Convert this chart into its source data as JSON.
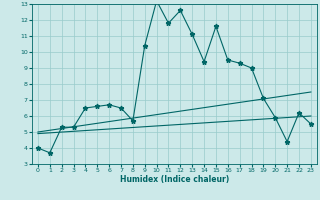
{
  "xlabel": "Humidex (Indice chaleur)",
  "xlim": [
    -0.5,
    23.5
  ],
  "ylim": [
    3,
    13
  ],
  "yticks": [
    3,
    4,
    5,
    6,
    7,
    8,
    9,
    10,
    11,
    12,
    13
  ],
  "xticks": [
    0,
    1,
    2,
    3,
    4,
    5,
    6,
    7,
    8,
    9,
    10,
    11,
    12,
    13,
    14,
    15,
    16,
    17,
    18,
    19,
    20,
    21,
    22,
    23
  ],
  "bg_color": "#cce9e9",
  "line_color": "#006666",
  "grid_color": "#99cccc",
  "series": [
    {
      "x": [
        0,
        1,
        2,
        3,
        4,
        5,
        6,
        7,
        8,
        9,
        10,
        11,
        12,
        13,
        14,
        15,
        16,
        17,
        18,
        19,
        20,
        21,
        22,
        23
      ],
      "y": [
        4.0,
        3.7,
        5.3,
        5.3,
        6.5,
        6.6,
        6.7,
        6.5,
        5.7,
        10.4,
        13.2,
        11.8,
        12.6,
        11.1,
        9.4,
        11.6,
        9.5,
        9.3,
        9.0,
        7.1,
        5.9,
        4.4,
        6.2,
        5.5
      ],
      "marker": "*",
      "markersize": 3.5
    },
    {
      "x": [
        0,
        23
      ],
      "y": [
        5.0,
        7.5
      ],
      "marker": null
    },
    {
      "x": [
        0,
        23
      ],
      "y": [
        4.9,
        6.0
      ],
      "marker": null
    }
  ]
}
